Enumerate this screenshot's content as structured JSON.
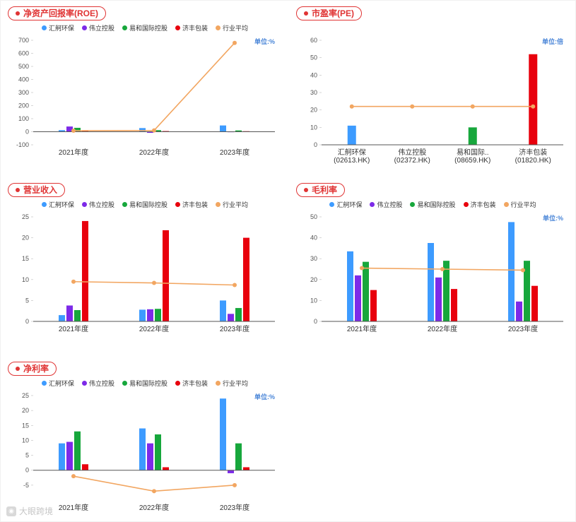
{
  "watermark": {
    "text": "大眼跨境"
  },
  "chart_data": [
    {
      "title": "净资产回报率(ROE)",
      "unit": "单位:%",
      "type": "bar",
      "legend": [
        "汇舸环保",
        "伟立控股",
        "易和国际控股",
        "济丰包装",
        "行业平均"
      ],
      "categories": [
        "2021年度",
        "2022年度",
        "2023年度"
      ],
      "ylim": [
        -100,
        700
      ],
      "yticks": [
        700,
        600,
        500,
        400,
        300,
        200,
        100,
        0,
        -100
      ],
      "series": [
        {
          "name": "汇舸环保",
          "kind": "bar",
          "color": "#3d9bff",
          "values": [
            12,
            28,
            48
          ]
        },
        {
          "name": "伟立控股",
          "kind": "bar",
          "color": "#7d2ae8",
          "values": [
            40,
            -8,
            2
          ]
        },
        {
          "name": "易和国际控股",
          "kind": "bar",
          "color": "#17a73c",
          "values": [
            30,
            12,
            10
          ]
        },
        {
          "name": "济丰包装",
          "kind": "bar",
          "color": "#e8000d",
          "values": [
            8,
            5,
            4
          ]
        },
        {
          "name": "行业平均",
          "kind": "line",
          "color": "#f2a661",
          "values": [
            8,
            10,
            680
          ]
        }
      ]
    },
    {
      "title": "市盈率(PE)",
      "unit": "单位:倍",
      "type": "bar",
      "legend": [],
      "categories": [
        "汇舸环保\n(02613.HK)",
        "伟立控股\n(02372.HK)",
        "易和国际..\n(08659.HK)",
        "济丰包装\n(01820.HK)"
      ],
      "ylim": [
        0,
        60
      ],
      "yticks": [
        60,
        50,
        40,
        30,
        20,
        10,
        0
      ],
      "series": [
        {
          "name": "市盈率",
          "kind": "bar",
          "colors": [
            "#3d9bff",
            "#7d2ae8",
            "#17a73c",
            "#e8000d"
          ],
          "values": [
            11,
            0,
            10,
            52
          ]
        },
        {
          "name": "行业平均",
          "kind": "line",
          "color": "#f2a661",
          "values": [
            22,
            22,
            22,
            22
          ]
        }
      ]
    },
    {
      "title": "营业收入",
      "unit": "",
      "type": "bar",
      "legend": [
        "汇舸环保",
        "伟立控股",
        "易和国际控股",
        "济丰包装",
        "行业平均"
      ],
      "categories": [
        "2021年度",
        "2022年度",
        "2023年度"
      ],
      "ylim": [
        0,
        25
      ],
      "yticks": [
        25,
        20,
        15,
        10,
        5,
        0
      ],
      "series": [
        {
          "name": "汇舸环保",
          "kind": "bar",
          "color": "#3d9bff",
          "values": [
            1.5,
            2.8,
            5
          ]
        },
        {
          "name": "伟立控股",
          "kind": "bar",
          "color": "#7d2ae8",
          "values": [
            3.8,
            2.9,
            1.8
          ]
        },
        {
          "name": "易和国际控股",
          "kind": "bar",
          "color": "#17a73c",
          "values": [
            2.7,
            3,
            3.2
          ]
        },
        {
          "name": "济丰包装",
          "kind": "bar",
          "color": "#e8000d",
          "values": [
            24,
            21.8,
            20
          ]
        },
        {
          "name": "行业平均",
          "kind": "line",
          "color": "#f2a661",
          "values": [
            9.5,
            9.2,
            8.7
          ]
        }
      ]
    },
    {
      "title": "毛利率",
      "unit": "单位:%",
      "type": "bar",
      "legend": [
        "汇舸环保",
        "伟立控股",
        "易和国际控股",
        "济丰包装",
        "行业平均"
      ],
      "categories": [
        "2021年度",
        "2022年度",
        "2023年度"
      ],
      "ylim": [
        0,
        50
      ],
      "yticks": [
        50,
        40,
        30,
        20,
        10,
        0
      ],
      "series": [
        {
          "name": "汇舸环保",
          "kind": "bar",
          "color": "#3d9bff",
          "values": [
            33.5,
            37.5,
            47.5
          ]
        },
        {
          "name": "伟立控股",
          "kind": "bar",
          "color": "#7d2ae8",
          "values": [
            22,
            21,
            9.5
          ]
        },
        {
          "name": "易和国际控股",
          "kind": "bar",
          "color": "#17a73c",
          "values": [
            28.5,
            29,
            29
          ]
        },
        {
          "name": "济丰包装",
          "kind": "bar",
          "color": "#e8000d",
          "values": [
            15,
            15.5,
            17
          ]
        },
        {
          "name": "行业平均",
          "kind": "line",
          "color": "#f2a661",
          "values": [
            25.5,
            25,
            24.5
          ]
        }
      ]
    },
    {
      "title": "净利率",
      "unit": "单位:%",
      "type": "bar",
      "legend": [
        "汇舸环保",
        "伟立控股",
        "易和国际控股",
        "济丰包装",
        "行业平均"
      ],
      "categories": [
        "2021年度",
        "2022年度",
        "2023年度"
      ],
      "ylim": [
        -10,
        25
      ],
      "yticks": [
        25,
        20,
        15,
        10,
        5,
        0,
        -5
      ],
      "series": [
        {
          "name": "汇舸环保",
          "kind": "bar",
          "color": "#3d9bff",
          "values": [
            9,
            14,
            24
          ]
        },
        {
          "name": "伟立控股",
          "kind": "bar",
          "color": "#7d2ae8",
          "values": [
            9.5,
            9,
            -1
          ]
        },
        {
          "name": "易和国际控股",
          "kind": "bar",
          "color": "#17a73c",
          "values": [
            13,
            12,
            9
          ]
        },
        {
          "name": "济丰包装",
          "kind": "bar",
          "color": "#e8000d",
          "values": [
            2,
            1,
            1
          ]
        },
        {
          "name": "行业平均",
          "kind": "line",
          "color": "#f2a661",
          "values": [
            -2,
            -7,
            -5
          ]
        }
      ]
    }
  ]
}
